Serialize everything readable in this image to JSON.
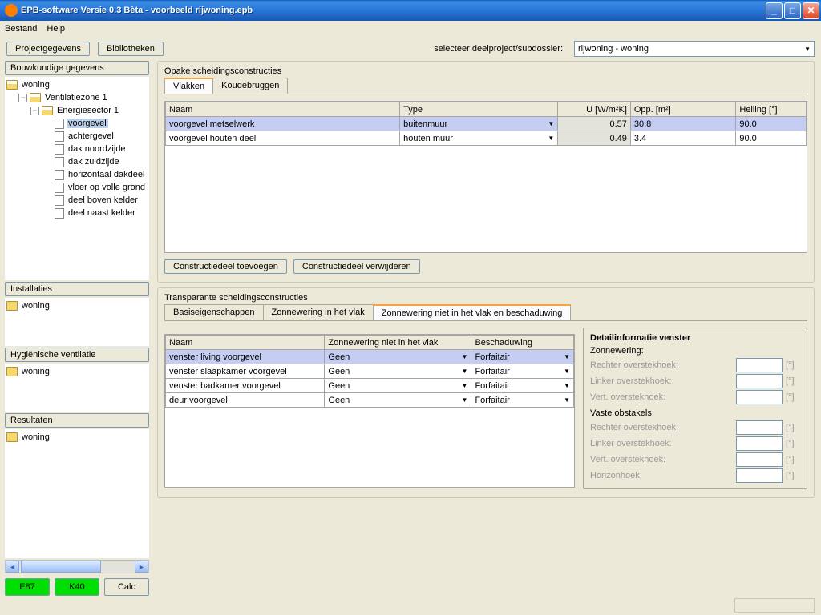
{
  "window": {
    "title": "EPB-software Versie 0.3 Bèta - voorbeeld rijwoning.epb"
  },
  "menu": {
    "bestand": "Bestand",
    "help": "Help"
  },
  "toolbar": {
    "projectgegevens": "Projectgegevens",
    "bibliotheken": "Bibliotheken",
    "selecteer_label": "selecteer deelproject/subdossier:",
    "deelproject_value": "rijwoning - woning"
  },
  "sections": {
    "bouwkundige": "Bouwkundige gegevens",
    "installaties": "Installaties",
    "hygienische": "Hygiënische ventilatie",
    "resultaten": "Resultaten"
  },
  "tree": {
    "woning": "woning",
    "ventilatiezone": "Ventilatiezone 1",
    "energiesector": "Energiesector 1",
    "items": {
      "voorgevel": "voorgevel",
      "achtergevel": "achtergevel",
      "dak_noordzijde": "dak noordzijde",
      "dak_zuidzijde": "dak zuidzijde",
      "horizontaal_dakdeel": "horizontaal dakdeel",
      "vloer_volle_grond": "vloer op volle grond",
      "deel_boven_kelder": "deel boven kelder",
      "deel_naast_kelder": "deel naast kelder"
    }
  },
  "bottom": {
    "e_label": "E87",
    "k_label": "K40",
    "calc": "Calc"
  },
  "opake": {
    "title": "Opake scheidingsconstructies",
    "tabs": {
      "vlakken": "Vlakken",
      "koudebruggen": "Koudebruggen"
    },
    "columns": {
      "naam": "Naam",
      "type": "Type",
      "u": "U [W/m²K]",
      "opp": "Opp. [m²]",
      "helling": "Helling [°]"
    },
    "rows": [
      {
        "naam": "voorgevel metselwerk",
        "type": "buitenmuur",
        "u": "0.57",
        "opp": "30.8",
        "helling": "90.0"
      },
      {
        "naam": "voorgevel houten deel",
        "type": "houten muur",
        "u": "0.49",
        "opp": "3.4",
        "helling": "90.0"
      }
    ],
    "btn_toevoegen": "Constructiedeel toevoegen",
    "btn_verwijderen": "Constructiedeel verwijderen"
  },
  "transparante": {
    "title": "Transparante scheidingsconstructies",
    "tabs": {
      "basis": "Basiseigenschappen",
      "zonne_in": "Zonnewering in het vlak",
      "zonne_niet": "Zonnewering niet in het vlak en beschaduwing"
    },
    "columns": {
      "naam": "Naam",
      "zonne": "Zonnewering niet in het vlak",
      "besch": "Beschaduwing"
    },
    "rows": [
      {
        "naam": "venster living voorgevel",
        "zonne": "Geen",
        "besch": "Forfaitair"
      },
      {
        "naam": "venster slaapkamer voorgevel",
        "zonne": "Geen",
        "besch": "Forfaitair"
      },
      {
        "naam": "venster badkamer voorgevel",
        "zonne": "Geen",
        "besch": "Forfaitair"
      },
      {
        "naam": "deur voorgevel",
        "zonne": "Geen",
        "besch": "Forfaitair"
      }
    ]
  },
  "detail": {
    "title": "Detailinformatie venster",
    "zonnewering": "Zonnewering:",
    "vaste_obstakels": "Vaste obstakels:",
    "rechter_overstek": "Rechter overstekhoek:",
    "linker_overstek": "Linker overstekhoek:",
    "vert_overstek": "Vert. overstekhoek:",
    "horizonhoek": "Horizonhoek:",
    "unit": "[°]"
  }
}
